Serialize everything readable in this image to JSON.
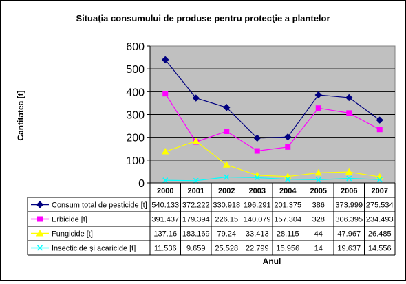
{
  "chart_data": {
    "type": "line",
    "title": "Situaţia consumului de produse pentru protecţie a plantelor",
    "xlabel": "Anul",
    "ylabel": "Cantitatea [t]",
    "ylim": [
      0,
      600
    ],
    "yticks": [
      "0",
      "100",
      "200",
      "300",
      "400",
      "500",
      "600"
    ],
    "grid": true,
    "legend": "data-table",
    "categories": [
      "2000",
      "2001",
      "2002",
      "2003",
      "2004",
      "2005",
      "2006",
      "2007"
    ],
    "series": [
      {
        "name": "Consum total de pesticide [t]",
        "color": "#000080",
        "marker": "diamond",
        "values": [
          540.133,
          372.222,
          330.918,
          196.291,
          201.375,
          386,
          373.999,
          275.534
        ],
        "labels": [
          "540.133",
          "372.222",
          "330.918",
          "196.291",
          "201.375",
          "386",
          "373.999",
          "275.534"
        ]
      },
      {
        "name": "Erbicide [t]",
        "color": "#FF00FF",
        "marker": "square",
        "values": [
          391.437,
          179.394,
          226.15,
          140.079,
          157.304,
          328,
          306.395,
          234.493
        ],
        "labels": [
          "391.437",
          "179.394",
          "226.15",
          "140.079",
          "157.304",
          "328",
          "306.395",
          "234.493"
        ]
      },
      {
        "name": "Fungicide [t]",
        "color": "#FFFF00",
        "marker": "triangle",
        "values": [
          137.16,
          183.169,
          79.24,
          33.413,
          28.115,
          44,
          47.967,
          26.485
        ],
        "labels": [
          "137.16",
          "183.169",
          "79.24",
          "33.413",
          "28.115",
          "44",
          "47.967",
          "26.485"
        ]
      },
      {
        "name": "Insecticide şi acaricide [t]",
        "color": "#00FFFF",
        "marker": "x",
        "values": [
          11.536,
          9.659,
          25.528,
          22.799,
          15.956,
          14,
          19.637,
          14.556
        ],
        "labels": [
          "11.536",
          "9.659",
          "25.528",
          "22.799",
          "15.956",
          "14",
          "19.637",
          "14.556"
        ]
      }
    ],
    "plot_background": "#C0C0C0"
  }
}
